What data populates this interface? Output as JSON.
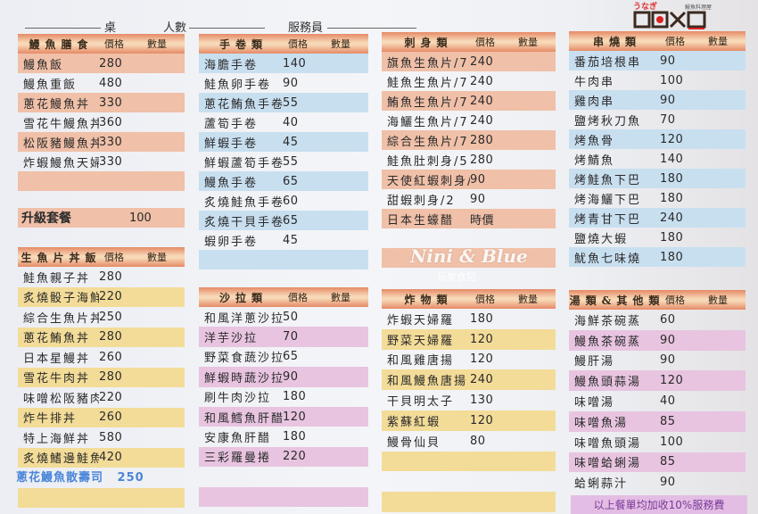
{
  "header": {
    "table_label": "桌",
    "people_label": "人數",
    "server_label": "服務員"
  },
  "logo": {
    "text_kana": "うなぎ",
    "text_sub": "鰻魚料理屋",
    "mark": "DOXD"
  },
  "watermark": {
    "brand": "Nini & Blue",
    "sub": "玩樂食記"
  },
  "colors": {
    "salmon": "#f0c0a8",
    "blue": "#c8dff0",
    "yellow": "#f3dc98",
    "pink": "#e8c4e0"
  },
  "col_labels": {
    "price": "價格",
    "qty": "數量"
  },
  "sections": [
    {
      "title": "鰻魚膳食",
      "color": "salmon",
      "items": [
        [
          "鰻魚飯",
          "280"
        ],
        [
          "鰻魚重飯",
          "480"
        ],
        [
          "蔥花鰻魚丼",
          "330"
        ],
        [
          "雪花牛鰻魚丼",
          "360"
        ],
        [
          "松阪豬鰻魚丼",
          "330"
        ],
        [
          "炸蝦鰻魚天婦羅丼",
          "330"
        ],
        [
          "",
          ""
        ]
      ]
    },
    {
      "title": "手卷類",
      "color": "blue",
      "items": [
        [
          "海膽手卷",
          "140"
        ],
        [
          "鮭魚卵手卷",
          "90"
        ],
        [
          "蔥花鮪魚手卷",
          "55"
        ],
        [
          "蘆筍手卷",
          "40"
        ],
        [
          "鮮蝦手卷",
          "45"
        ],
        [
          "鮮蝦蘆筍手卷",
          "55"
        ],
        [
          "鰻魚手卷",
          "65"
        ],
        [
          "炙燒鮭魚手卷",
          "60"
        ],
        [
          "炙燒干貝手卷",
          "65"
        ],
        [
          "蝦卵手卷",
          "45"
        ],
        [
          "",
          ""
        ]
      ]
    },
    {
      "title": "刺身類",
      "color": "salmon",
      "items": [
        [
          "旗魚生魚片/7",
          "240"
        ],
        [
          "鮭魚生魚片/7",
          "240"
        ],
        [
          "鮪魚生魚片/7",
          "240"
        ],
        [
          "海鱺生魚片/7",
          "240"
        ],
        [
          "綜合生魚片/7",
          "280"
        ],
        [
          "鮭魚肚刺身/5",
          "280"
        ],
        [
          "天使紅蝦刺身/2",
          "90"
        ],
        [
          "甜蝦刺身/2",
          "90"
        ],
        [
          "日本生蠔醋",
          "時價"
        ],
        [
          "",
          ""
        ],
        [
          "",
          ""
        ]
      ]
    },
    {
      "title": "串燒類",
      "color": "blue",
      "items": [
        [
          "番茄培根串",
          "90"
        ],
        [
          "牛肉串",
          "100"
        ],
        [
          "雞肉串",
          "90"
        ],
        [
          "鹽烤秋刀魚",
          "70"
        ],
        [
          "烤魚骨",
          "120"
        ],
        [
          "烤鯖魚",
          "140"
        ],
        [
          "烤鮭魚下巴",
          "180"
        ],
        [
          "烤海鱺下巴",
          "180"
        ],
        [
          "烤青甘下巴",
          "240"
        ],
        [
          "鹽燒大蝦",
          "180"
        ],
        [
          "魷魚七味燒",
          "180"
        ]
      ]
    },
    {
      "title": "生魚片丼飯",
      "color": "yellow",
      "items": [
        [
          "鮭魚親子丼",
          "280"
        ],
        [
          "炙燒骰子海鮮丼",
          "220"
        ],
        [
          "綜合生魚片丼",
          "250"
        ],
        [
          "蔥花鮪魚丼",
          "280"
        ],
        [
          "日本星鰻丼",
          "260"
        ],
        [
          "雪花牛肉丼",
          "280"
        ],
        [
          "味噌松阪豬肉",
          "220"
        ],
        [
          "炸牛排丼",
          "260"
        ],
        [
          "特上海鮮丼",
          "580"
        ],
        [
          "炙燒鰭邊鮭魚丼",
          "420"
        ],
        [
          "",
          ""
        ],
        [
          "",
          ""
        ]
      ]
    },
    {
      "title": "沙拉類",
      "color": "pink",
      "items": [
        [
          "和風洋蔥沙拉",
          "50"
        ],
        [
          "洋芋沙拉",
          "70"
        ],
        [
          "野菜食蔬沙拉",
          "65"
        ],
        [
          "鮮蝦時蔬沙拉",
          "90"
        ],
        [
          "刷牛肉沙拉",
          "180"
        ],
        [
          "和風鱈魚肝醋",
          "120"
        ],
        [
          "安康魚肝醋",
          "180"
        ],
        [
          "三彩羅曼捲",
          "220"
        ],
        [
          "",
          ""
        ],
        [
          "",
          ""
        ]
      ]
    },
    {
      "title": "炸物類",
      "color": "yellow",
      "items": [
        [
          "炸蝦天婦羅",
          "180"
        ],
        [
          "野菜天婦羅",
          "120"
        ],
        [
          "和風雞唐揚",
          "120"
        ],
        [
          "和風鰻魚唐揚",
          "240"
        ],
        [
          "干貝明太子",
          "130"
        ],
        [
          "紫蘇紅蝦",
          "120"
        ],
        [
          "鰻骨仙貝",
          "80"
        ],
        [
          "",
          ""
        ],
        [
          "",
          ""
        ],
        [
          "",
          ""
        ]
      ]
    },
    {
      "title": "湯類&其他類",
      "color": "pink",
      "items": [
        [
          "海鮮茶碗蒸",
          "60"
        ],
        [
          "鰻魚茶碗蒸",
          "90"
        ],
        [
          "鰻肝湯",
          "90"
        ],
        [
          "鰻魚頭蒜湯",
          "120"
        ],
        [
          "味噌湯",
          "40"
        ],
        [
          "味噌魚湯",
          "85"
        ],
        [
          "味噌魚頭湯",
          "100"
        ],
        [
          "味噌蛤蜊湯",
          "85"
        ],
        [
          "蛤蜊蒜汁",
          "90"
        ]
      ]
    }
  ],
  "upgrade": {
    "label": "升級套餐",
    "price": "100"
  },
  "promo": {
    "label": "蔥花鰻魚散壽司",
    "price": "250"
  },
  "notice": "以上餐單均加收10%服務費"
}
